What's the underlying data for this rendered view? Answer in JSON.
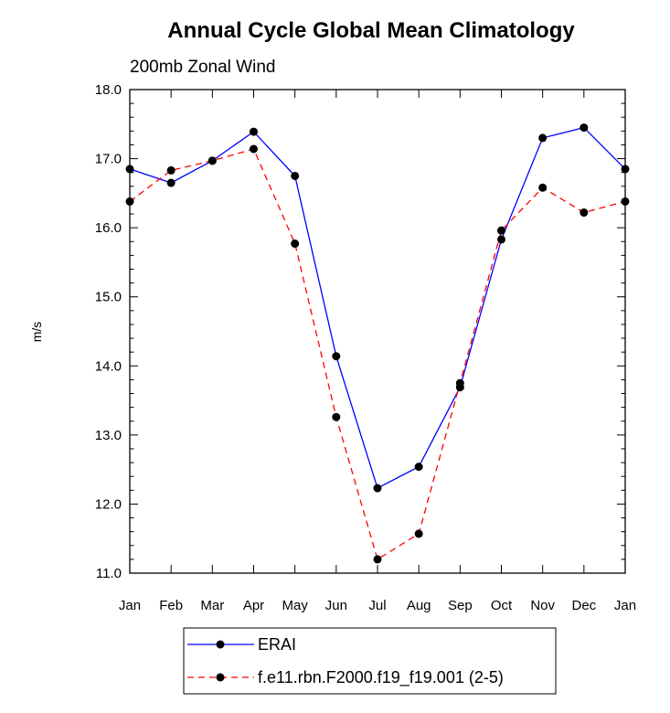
{
  "chart_data": {
    "type": "line",
    "title": "Annual Cycle Global Mean Climatology",
    "subtitle": "200mb Zonal Wind",
    "xlabel": "",
    "ylabel": "m/s",
    "categories": [
      "Jan",
      "Feb",
      "Mar",
      "Apr",
      "May",
      "Jun",
      "Jul",
      "Aug",
      "Sep",
      "Oct",
      "Nov",
      "Dec",
      "Jan"
    ],
    "ylim": [
      11.0,
      18.0
    ],
    "yticks": [
      "11.0",
      "12.0",
      "13.0",
      "14.0",
      "15.0",
      "16.0",
      "17.0",
      "18.0"
    ],
    "grid": false,
    "legend_position": "bottom",
    "series": [
      {
        "name": "ERAI",
        "color": "#0000ff",
        "dash": "solid",
        "values": [
          16.85,
          16.65,
          16.97,
          17.39,
          16.75,
          14.14,
          12.23,
          12.54,
          13.69,
          15.83,
          17.3,
          17.45,
          16.85
        ]
      },
      {
        "name": "f.e11.rbn.F2000.f19_f19.001 (2-5)",
        "color": "#ff0000",
        "dash": "dashed",
        "values": [
          16.38,
          16.83,
          16.97,
          17.14,
          15.77,
          13.26,
          11.2,
          11.57,
          13.75,
          15.96,
          16.58,
          16.22,
          16.38
        ]
      }
    ]
  }
}
